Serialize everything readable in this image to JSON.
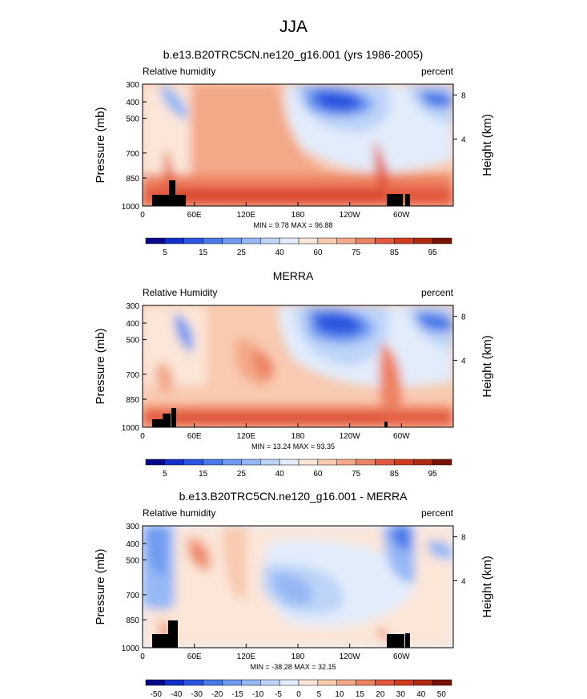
{
  "page_title": "JJA",
  "colors": {
    "cbar_abs": [
      "#08088a",
      "#1030c8",
      "#2a55e0",
      "#4a7ae8",
      "#6e9af0",
      "#95b8f5",
      "#bdd4f8",
      "#e2ecfb",
      "#fbe6d8",
      "#f8cab0",
      "#f3a888",
      "#ed8262",
      "#e3583c",
      "#d23b1e",
      "#b02a12",
      "#7a1204"
    ],
    "cbar_diff": [
      "#08088a",
      "#1030c8",
      "#2a55e0",
      "#4a7ae8",
      "#6e9af0",
      "#95b8f5",
      "#bdd4f8",
      "#e2ecfb",
      "#fbe6d8",
      "#f8cab0",
      "#f3a888",
      "#ed8262",
      "#e3583c",
      "#d23b1e",
      "#b02a12",
      "#7a1204"
    ]
  },
  "chart_data": [
    {
      "type": "heatmap",
      "title": "b.e13.B20TRC5CN.ne120_g16.001 (yrs 1986-2005)",
      "left_label": "Relative humidity",
      "right_label": "percent",
      "ylabel": "Pressure (mb)",
      "ylabel_right": "Height (km)",
      "yticks": [
        "300",
        "400",
        "500",
        "700",
        "850",
        "1000"
      ],
      "yticks_right": [
        "8",
        "4"
      ],
      "xticks": [
        "0",
        "60E",
        "120E",
        "180",
        "120W",
        "60W"
      ],
      "min_max": "MIN =  9.78  MAX = 96.88",
      "colorbar_labels": [
        "5",
        "15",
        "25",
        "40",
        "60",
        "75",
        "85",
        "95"
      ],
      "colorbar": "abs"
    },
    {
      "type": "heatmap",
      "title": "MERRA",
      "left_label": "Relative Humidity",
      "right_label": "percent",
      "ylabel": "Pressure (mb)",
      "ylabel_right": "Height (km)",
      "yticks": [
        "300",
        "400",
        "500",
        "700",
        "850",
        "1000"
      ],
      "yticks_right": [
        "8",
        "4"
      ],
      "xticks": [
        "0",
        "60E",
        "120E",
        "180",
        "120W",
        "60W"
      ],
      "min_max": "MIN = 13.24  MAX = 93.35",
      "colorbar_labels": [
        "5",
        "15",
        "25",
        "40",
        "60",
        "75",
        "85",
        "95"
      ],
      "colorbar": "abs"
    },
    {
      "type": "heatmap",
      "title": "b.e13.B20TRC5CN.ne120_g16.001 - MERRA",
      "left_label": "Relative humidity",
      "right_label": "percent",
      "ylabel": "Pressure (mb)",
      "ylabel_right": "Height (km)",
      "yticks": [
        "300",
        "400",
        "500",
        "700",
        "850",
        "1000"
      ],
      "yticks_right": [
        "8",
        "4"
      ],
      "xticks": [
        "0",
        "60E",
        "120E",
        "180",
        "120W",
        "60W"
      ],
      "min_max": "MIN = -38.28  MAX = 32.15",
      "colorbar_labels": [
        "-50",
        "-40",
        "-30",
        "-20",
        "-15",
        "-10",
        "-5",
        "0",
        "5",
        "10",
        "15",
        "20",
        "30",
        "40",
        "50"
      ],
      "colorbar": "diff"
    }
  ]
}
